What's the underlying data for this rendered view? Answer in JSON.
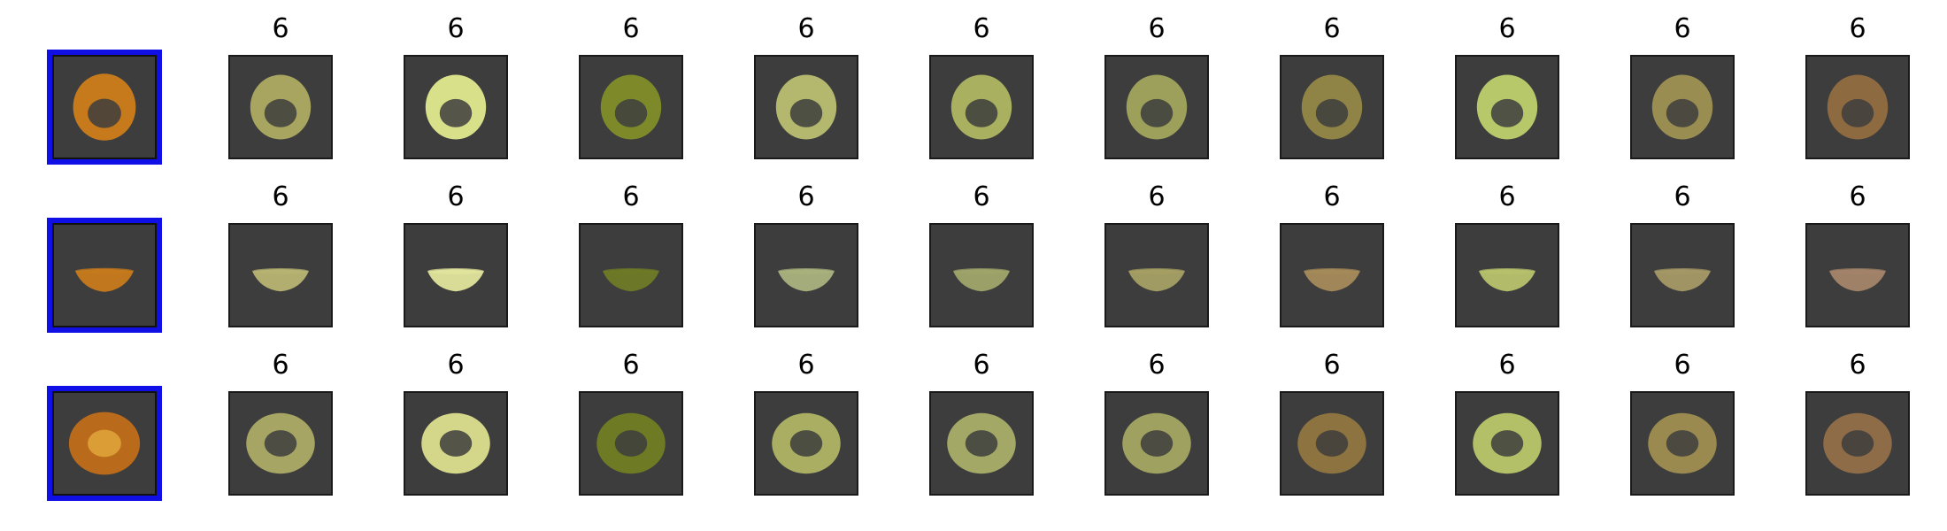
{
  "rows": [
    {
      "view": "top",
      "query": {
        "color": "#c77a1c",
        "hole": "#3d3d3d"
      },
      "results": [
        {
          "label": "6",
          "color": "#a8a560"
        },
        {
          "label": "6",
          "color": "#d9e08a"
        },
        {
          "label": "6",
          "color": "#7e8a2a"
        },
        {
          "label": "6",
          "color": "#b3b86e"
        },
        {
          "label": "6",
          "color": "#a9b060"
        },
        {
          "label": "6",
          "color": "#9ca05a"
        },
        {
          "label": "6",
          "color": "#8f8445"
        },
        {
          "label": "6",
          "color": "#b6c86a"
        },
        {
          "label": "6",
          "color": "#9a8d52"
        },
        {
          "label": "6",
          "color": "#8e6a40"
        }
      ]
    },
    {
      "view": "side",
      "query": {
        "color": "#c77a1c",
        "hole": "#3d3d3d"
      },
      "results": [
        {
          "label": "6",
          "color": "#b8b472"
        },
        {
          "label": "6",
          "color": "#e2e59c"
        },
        {
          "label": "6",
          "color": "#6f7a26"
        },
        {
          "label": "6",
          "color": "#aab27e"
        },
        {
          "label": "6",
          "color": "#9fa56a"
        },
        {
          "label": "6",
          "color": "#a5a064"
        },
        {
          "label": "6",
          "color": "#a58a5a"
        },
        {
          "label": "6",
          "color": "#b8c26c"
        },
        {
          "label": "6",
          "color": "#a59966"
        },
        {
          "label": "6",
          "color": "#a4856a"
        }
      ]
    },
    {
      "view": "bottom",
      "query": {
        "color": "#b96a1a",
        "hole": "#e1a63c"
      },
      "results": [
        {
          "label": "6",
          "color": "#a6a564"
        },
        {
          "label": "6",
          "color": "#d4d68a"
        },
        {
          "label": "6",
          "color": "#6e7a24"
        },
        {
          "label": "6",
          "color": "#a9ae62"
        },
        {
          "label": "6",
          "color": "#a4a866"
        },
        {
          "label": "6",
          "color": "#9fa160"
        },
        {
          "label": "6",
          "color": "#8d7340"
        },
        {
          "label": "6",
          "color": "#b3c068"
        },
        {
          "label": "6",
          "color": "#9a8a50"
        },
        {
          "label": "6",
          "color": "#8e6c48"
        }
      ]
    }
  ]
}
